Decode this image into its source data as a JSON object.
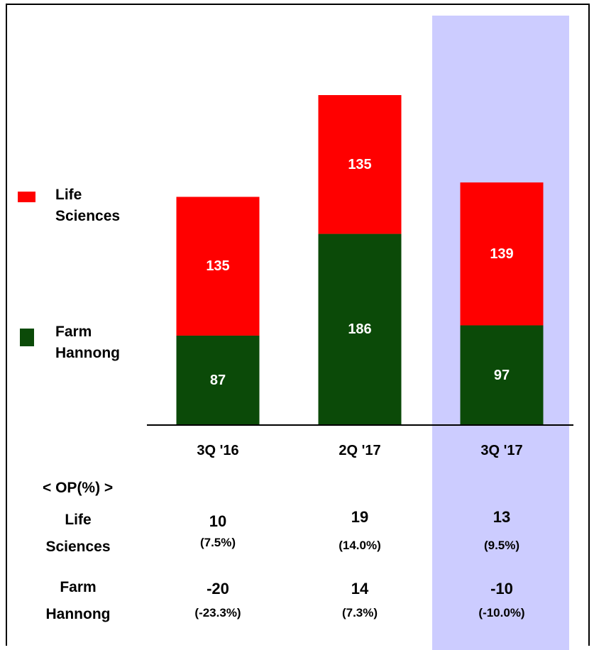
{
  "chart_data": {
    "type": "stacked-bar",
    "categories": [
      "3Q '16",
      "2Q '17",
      "3Q '17"
    ],
    "series": [
      {
        "name": "Farm Hannong",
        "color": "#0b4a08",
        "values": [
          87,
          186,
          97
        ]
      },
      {
        "name": "Life Sciences",
        "color": "#ff0000",
        "values": [
          135,
          135,
          139
        ]
      }
    ],
    "highlight_index": 2,
    "highlight_color": "#ccccff"
  },
  "op_table": {
    "title": "< OP(%) >",
    "rows": [
      {
        "label": "Life Sciences",
        "values": [
          10,
          19,
          13
        ],
        "ratios": [
          "(7.5%)",
          "(14.0%)",
          "(9.5%)"
        ]
      },
      {
        "label": "Farm Hannong",
        "values": [
          -20,
          14,
          -10
        ],
        "ratios": [
          "(-23.3%)",
          "(7.3%)",
          "(-10.0%)"
        ]
      }
    ]
  }
}
